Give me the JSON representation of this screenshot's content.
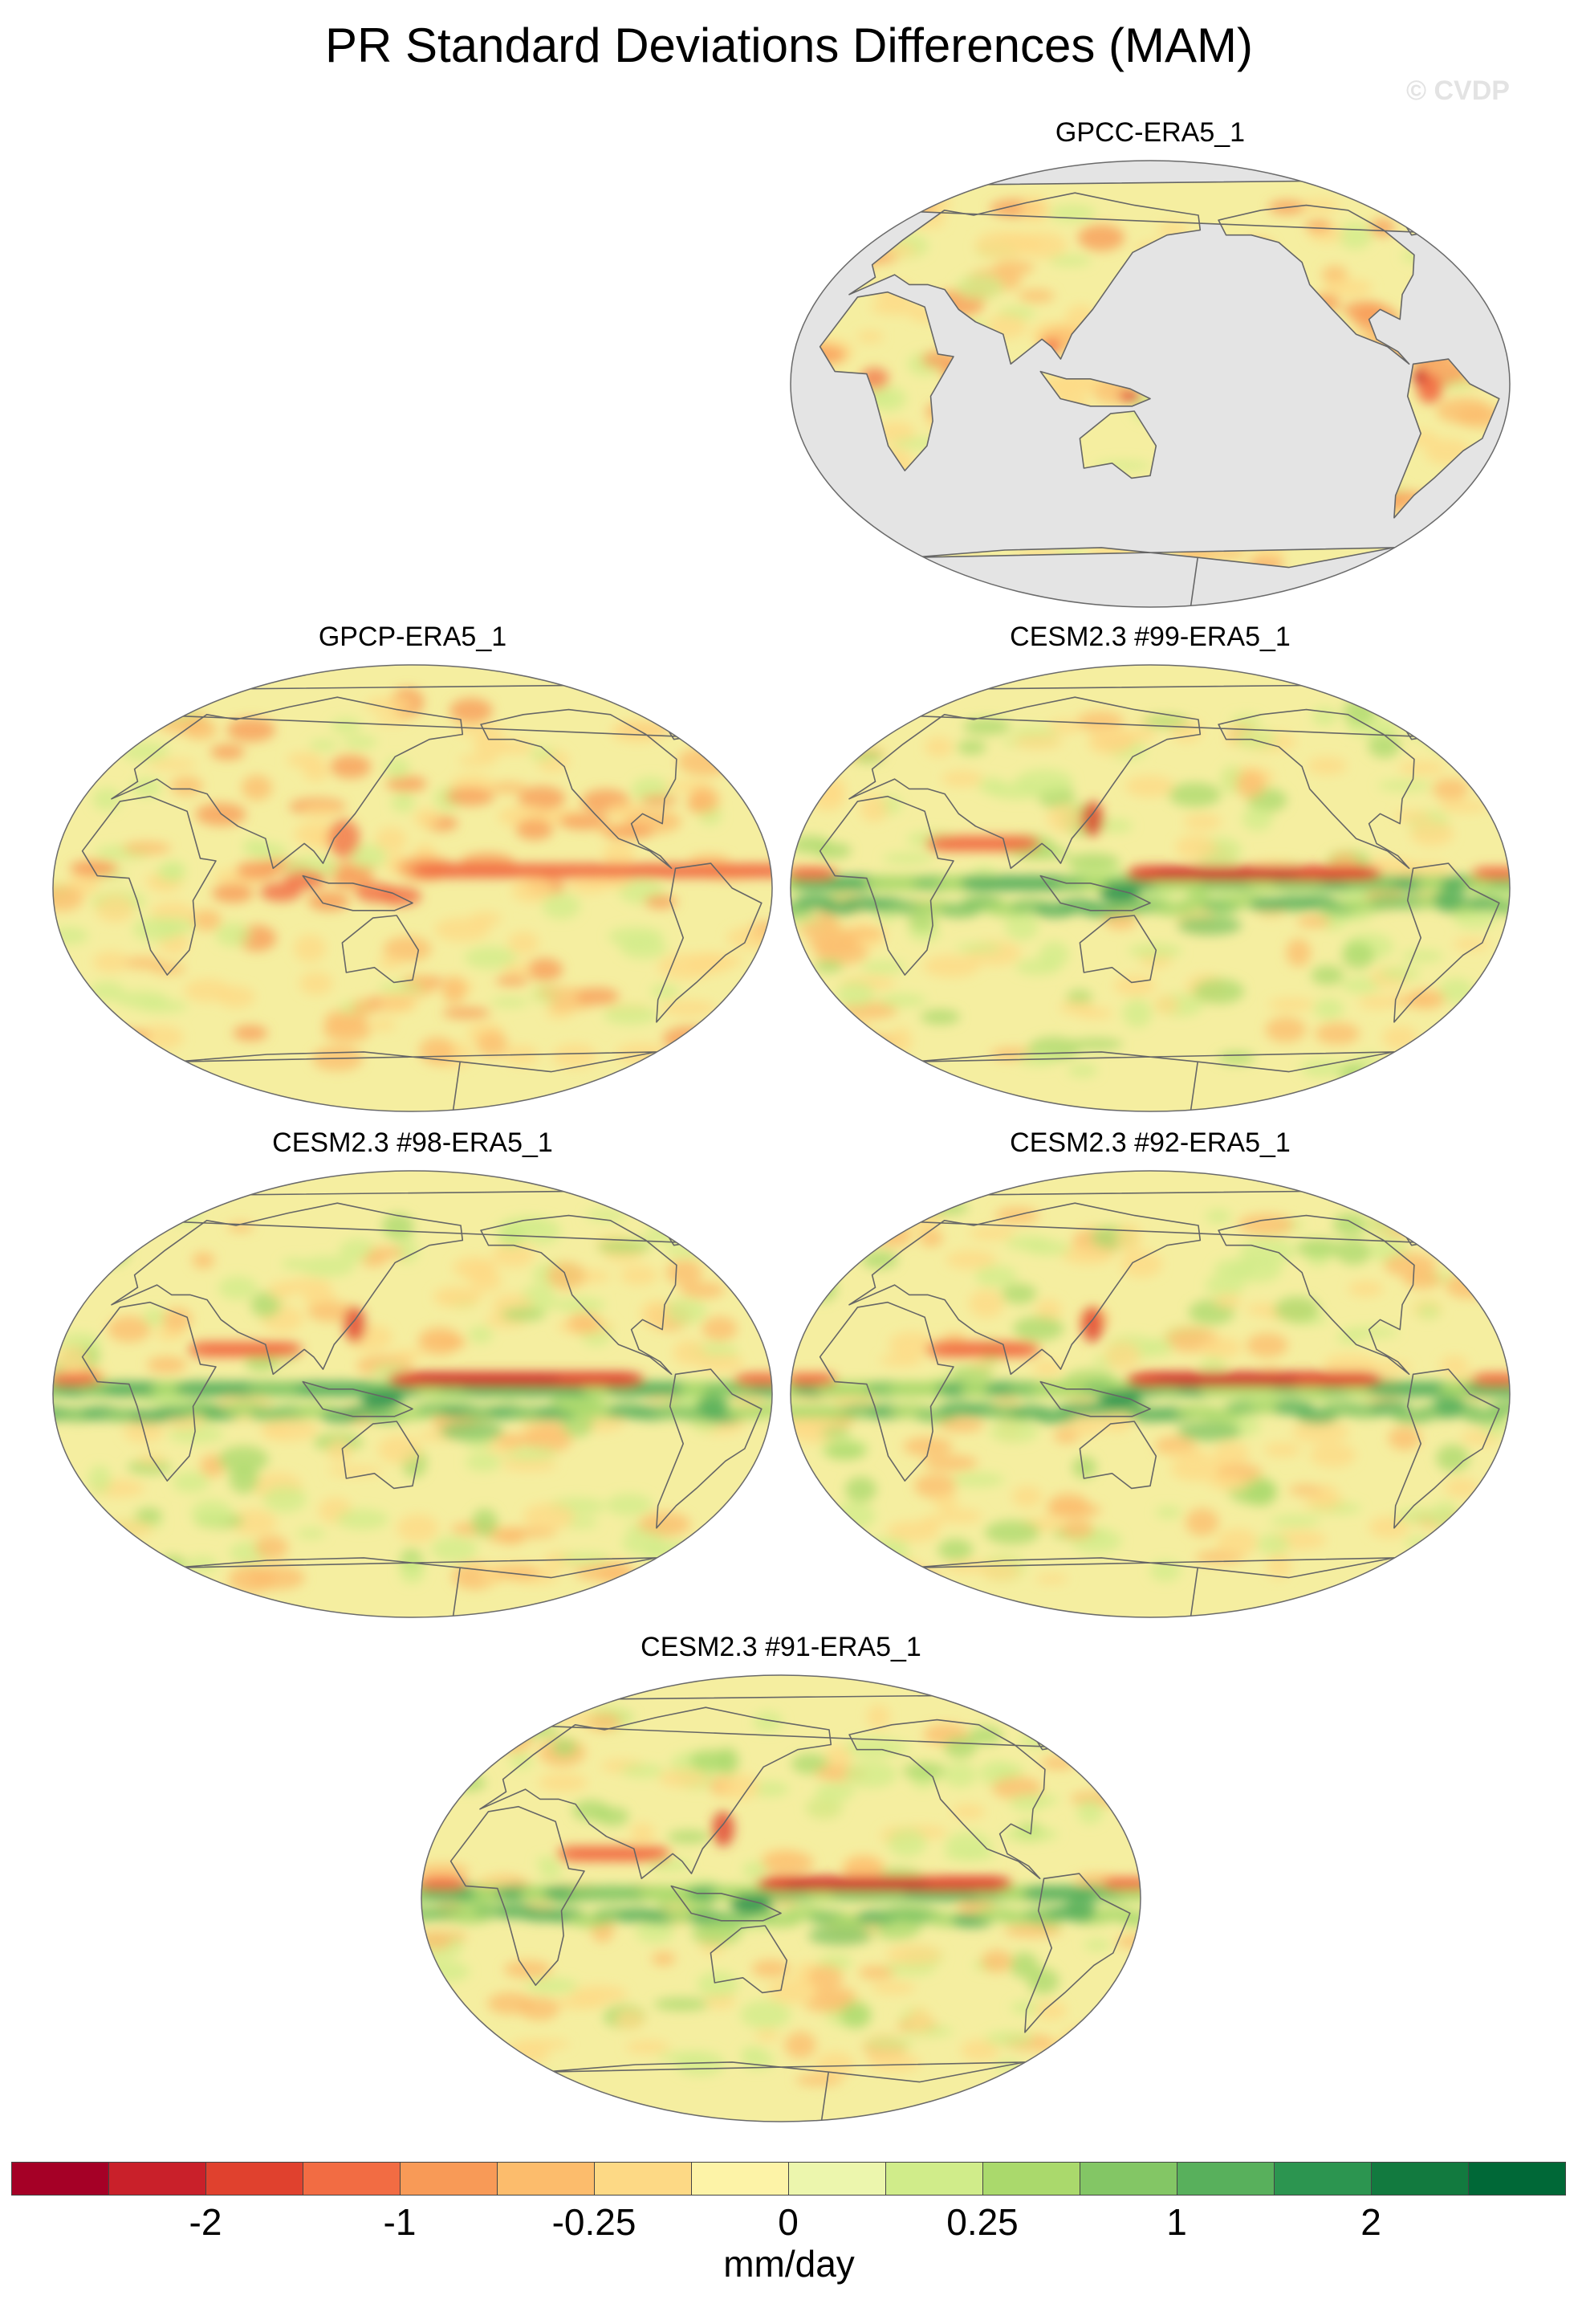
{
  "title": "PR Standard Deviations Differences (MAM)",
  "watermark": "© CVDP",
  "panels": [
    {
      "title": "GPCC-ERA5_1",
      "style": "land"
    },
    {
      "title": "GPCP-ERA5_1",
      "style": "obs"
    },
    {
      "title": "CESM2.3 #99-ERA5_1",
      "style": "model"
    },
    {
      "title": "CESM2.3 #98-ERA5_1",
      "style": "model"
    },
    {
      "title": "CESM2.3 #92-ERA5_1",
      "style": "model"
    },
    {
      "title": "CESM2.3 #91-ERA5_1",
      "style": "model"
    }
  ],
  "colorbar": {
    "units": "mm/day",
    "tick_labels": [
      "-2",
      "-1",
      "-0.25",
      "0",
      "0.25",
      "1",
      "2"
    ],
    "colors": [
      "#a50026",
      "#c9202a",
      "#e0412e",
      "#f26c43",
      "#f89a57",
      "#fcbc6c",
      "#fdd985",
      "#fdf3a7",
      "#ecf6ad",
      "#d0ec8a",
      "#aad96c",
      "#83c665",
      "#58b05c",
      "#2c9550",
      "#127a3f",
      "#006837"
    ]
  },
  "map_colors": {
    "ocean_mask": "#e4e4e4",
    "coast": "#666666",
    "background": "#f5eea0"
  }
}
